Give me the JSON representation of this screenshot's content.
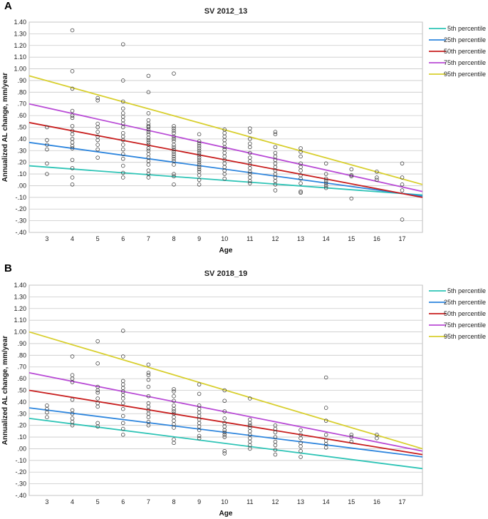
{
  "chart_data": [
    {
      "panel": "A",
      "type": "scatter",
      "title": "SV 2012_13",
      "xlabel": "Age",
      "ylabel": "Annualized AL change, mm/year",
      "xlim": [
        2.3,
        17.8
      ],
      "ylim": [
        -0.4,
        1.4
      ],
      "x_ticks": [
        3,
        4,
        5,
        6,
        7,
        8,
        9,
        10,
        11,
        12,
        13,
        14,
        15,
        16,
        17
      ],
      "y_ticks": [
        -0.4,
        -0.3,
        -0.2,
        -0.1,
        0.0,
        0.1,
        0.2,
        0.3,
        0.4,
        0.5,
        0.6,
        0.7,
        0.8,
        0.9,
        1.0,
        1.1,
        1.2,
        1.3,
        1.4
      ],
      "y_tick_labels": [
        "-.40",
        "-.30",
        "-.20",
        "-.10",
        ".00",
        ".10",
        ".20",
        ".30",
        ".40",
        ".50",
        ".60",
        ".70",
        ".80",
        ".90",
        "1.00",
        "1.10",
        "1.20",
        "1.30",
        "1.40"
      ],
      "grid": true,
      "legend": "right",
      "series": [
        {
          "name": "5th percentile",
          "color": "#2ec4b6",
          "x": [
            2.3,
            17.8
          ],
          "y": [
            0.17,
            -0.08
          ]
        },
        {
          "name": "25th percentile",
          "color": "#2e86de",
          "x": [
            2.3,
            17.8
          ],
          "y": [
            0.37,
            -0.09
          ]
        },
        {
          "name": "50th percentile",
          "color": "#c81e1e",
          "x": [
            2.3,
            17.8
          ],
          "y": [
            0.54,
            -0.1
          ]
        },
        {
          "name": "75th percentile",
          "color": "#b94bd6",
          "x": [
            2.3,
            17.8
          ],
          "y": [
            0.7,
            -0.05
          ]
        },
        {
          "name": "95th percentile",
          "color": "#d8cf2e",
          "x": [
            2.3,
            17.8
          ],
          "y": [
            0.94,
            0.01
          ]
        }
      ],
      "points": {
        "3": [
          0.5,
          0.39,
          0.35,
          0.31,
          0.19,
          0.1
        ],
        "4": [
          1.33,
          0.98,
          0.83,
          0.64,
          0.6,
          0.58,
          0.51,
          0.47,
          0.44,
          0.4,
          0.37,
          0.34,
          0.32,
          0.22,
          0.15,
          0.07,
          0.01
        ],
        "5": [
          0.75,
          0.73,
          0.53,
          0.5,
          0.46,
          0.42,
          0.39,
          0.35,
          0.31,
          0.24
        ],
        "6": [
          1.21,
          0.9,
          0.72,
          0.66,
          0.62,
          0.59,
          0.56,
          0.53,
          0.5,
          0.45,
          0.42,
          0.39,
          0.35,
          0.31,
          0.27,
          0.23,
          0.17,
          0.11,
          0.07
        ],
        "7": [
          0.94,
          0.8,
          0.62,
          0.56,
          0.53,
          0.51,
          0.5,
          0.48,
          0.46,
          0.44,
          0.41,
          0.39,
          0.37,
          0.35,
          0.32,
          0.3,
          0.27,
          0.24,
          0.21,
          0.18,
          0.13,
          0.1,
          0.07
        ],
        "8": [
          0.96,
          0.51,
          0.49,
          0.47,
          0.45,
          0.42,
          0.4,
          0.38,
          0.35,
          0.33,
          0.31,
          0.29,
          0.27,
          0.25,
          0.23,
          0.21,
          0.18,
          0.1,
          0.08,
          0.01
        ],
        "9": [
          0.44,
          0.38,
          0.36,
          0.34,
          0.32,
          0.3,
          0.28,
          0.26,
          0.24,
          0.22,
          0.2,
          0.18,
          0.16,
          0.14,
          0.12,
          0.09,
          0.05,
          0.01
        ],
        "10": [
          0.48,
          0.45,
          0.42,
          0.39,
          0.36,
          0.33,
          0.31,
          0.28,
          0.25,
          0.22,
          0.19,
          0.16,
          0.13,
          0.1,
          0.06
        ],
        "11": [
          0.49,
          0.46,
          0.4,
          0.36,
          0.33,
          0.28,
          0.24,
          0.21,
          0.18,
          0.15,
          0.12,
          0.1,
          0.07,
          0.04,
          0.02
        ],
        "12": [
          0.46,
          0.44,
          0.33,
          0.28,
          0.25,
          0.22,
          0.19,
          0.16,
          0.13,
          0.1,
          0.07,
          0.04,
          0.01,
          -0.04
        ],
        "13": [
          0.32,
          0.29,
          0.25,
          0.19,
          0.16,
          0.13,
          0.09,
          0.06,
          0.02,
          -0.05,
          -0.06
        ],
        "14": [
          0.19,
          0.1,
          0.06,
          0.04,
          0.02,
          0.0,
          -0.02
        ],
        "15": [
          0.14,
          0.09,
          0.08,
          -0.11
        ],
        "16": [
          0.12,
          0.07,
          0.05
        ],
        "17": [
          0.19,
          0.07,
          0.01,
          -0.04,
          -0.29
        ]
      }
    },
    {
      "panel": "B",
      "type": "scatter",
      "title": "SV 2018_19",
      "xlabel": "Age",
      "ylabel": "Annualized AL change, mm/year",
      "xlim": [
        2.3,
        17.8
      ],
      "ylim": [
        -0.4,
        1.4
      ],
      "x_ticks": [
        3,
        4,
        5,
        6,
        7,
        8,
        9,
        10,
        11,
        12,
        13,
        14,
        15,
        16,
        17
      ],
      "y_ticks": [
        -0.4,
        -0.3,
        -0.2,
        -0.1,
        0.0,
        0.1,
        0.2,
        0.3,
        0.4,
        0.5,
        0.6,
        0.7,
        0.8,
        0.9,
        1.0,
        1.1,
        1.2,
        1.3,
        1.4
      ],
      "y_tick_labels": [
        "-.40",
        "-.30",
        "-.20",
        "-.10",
        ".00",
        ".10",
        ".20",
        ".30",
        ".40",
        ".50",
        ".60",
        ".70",
        ".80",
        ".90",
        "1.00",
        "1.10",
        "1.20",
        "1.30",
        "1.40"
      ],
      "grid": true,
      "legend": "right",
      "series": [
        {
          "name": "5th percentile",
          "color": "#2ec4b6",
          "x": [
            2.3,
            17.8
          ],
          "y": [
            0.26,
            -0.17
          ]
        },
        {
          "name": "25th percentile",
          "color": "#2e86de",
          "x": [
            2.3,
            17.8
          ],
          "y": [
            0.35,
            -0.07
          ]
        },
        {
          "name": "50th percentile",
          "color": "#c81e1e",
          "x": [
            2.3,
            17.8
          ],
          "y": [
            0.5,
            -0.05
          ]
        },
        {
          "name": "75th percentile",
          "color": "#b94bd6",
          "x": [
            2.3,
            17.8
          ],
          "y": [
            0.65,
            -0.02
          ]
        },
        {
          "name": "95th percentile",
          "color": "#d8cf2e",
          "x": [
            2.3,
            17.8
          ],
          "y": [
            1.0,
            0.0
          ]
        }
      ],
      "points": {
        "3": [
          0.37,
          0.34,
          0.31,
          0.27
        ],
        "4": [
          0.79,
          0.63,
          0.6,
          0.57,
          0.42,
          0.33,
          0.3,
          0.26,
          0.23,
          0.2
        ],
        "5": [
          0.92,
          0.73,
          0.53,
          0.5,
          0.48,
          0.43,
          0.39,
          0.36,
          0.22,
          0.19
        ],
        "6": [
          1.01,
          0.79,
          0.58,
          0.55,
          0.52,
          0.49,
          0.46,
          0.43,
          0.39,
          0.34,
          0.28,
          0.22,
          0.17,
          0.12
        ],
        "7": [
          0.72,
          0.65,
          0.63,
          0.59,
          0.53,
          0.45,
          0.39,
          0.36,
          0.33,
          0.3,
          0.27,
          0.23,
          0.2
        ],
        "8": [
          0.51,
          0.49,
          0.45,
          0.41,
          0.37,
          0.34,
          0.32,
          0.3,
          0.27,
          0.24,
          0.21,
          0.18,
          0.08,
          0.05
        ],
        "9": [
          0.55,
          0.47,
          0.37,
          0.34,
          0.31,
          0.28,
          0.25,
          0.22,
          0.19,
          0.16,
          0.11,
          0.09
        ],
        "10": [
          0.5,
          0.41,
          0.32,
          0.26,
          0.22,
          0.19,
          0.16,
          0.14,
          0.12,
          0.1,
          -0.02,
          -0.04
        ],
        "11": [
          0.43,
          0.25,
          0.22,
          0.2,
          0.18,
          0.15,
          0.12,
          0.09,
          0.06,
          0.03,
          0.0
        ],
        "12": [
          0.2,
          0.17,
          0.14,
          0.1,
          0.06,
          0.03,
          -0.01,
          -0.05
        ],
        "13": [
          0.16,
          0.12,
          0.09,
          0.05,
          0.02,
          -0.02,
          -0.07
        ],
        "14": [
          0.61,
          0.35,
          0.24,
          0.12,
          0.07,
          0.04,
          0.01
        ],
        "15": [
          0.12,
          0.1,
          0.06
        ],
        "16": [
          0.12,
          0.09
        ]
      }
    }
  ]
}
